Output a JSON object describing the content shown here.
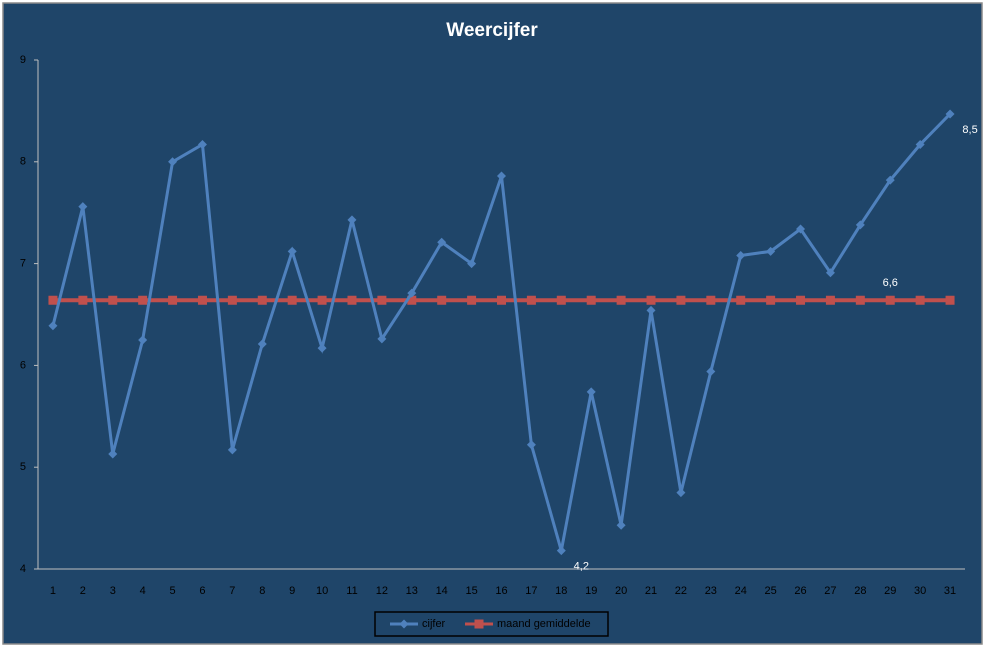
{
  "chart_data": {
    "type": "line",
    "title": "Weercijfer",
    "categories": [
      "1",
      "2",
      "3",
      "4",
      "5",
      "6",
      "7",
      "8",
      "9",
      "10",
      "11",
      "12",
      "13",
      "14",
      "15",
      "16",
      "17",
      "18",
      "19",
      "20",
      "21",
      "22",
      "23",
      "24",
      "25",
      "26",
      "27",
      "28",
      "29",
      "30",
      "31"
    ],
    "series": [
      {
        "name": "cijfer",
        "color": "#4f81bd",
        "marker": "diamond",
        "values": [
          6.39,
          7.56,
          5.13,
          6.25,
          8.0,
          8.17,
          5.17,
          6.21,
          7.12,
          6.17,
          7.43,
          6.26,
          6.71,
          7.21,
          7.0,
          7.86,
          5.22,
          4.18,
          5.74,
          4.43,
          6.54,
          4.75,
          5.94,
          7.08,
          7.12,
          7.34,
          6.91,
          7.38,
          7.82,
          8.17,
          8.47
        ],
        "value_labels": [
          null,
          null,
          null,
          null,
          null,
          null,
          null,
          null,
          null,
          null,
          null,
          null,
          null,
          null,
          null,
          null,
          null,
          "4,2",
          null,
          null,
          null,
          null,
          null,
          null,
          null,
          null,
          null,
          null,
          null,
          null,
          "8,5"
        ]
      },
      {
        "name": "maand gemiddelde",
        "color": "#c0504d",
        "marker": "square",
        "values": [
          6.64,
          6.64,
          6.64,
          6.64,
          6.64,
          6.64,
          6.64,
          6.64,
          6.64,
          6.64,
          6.64,
          6.64,
          6.64,
          6.64,
          6.64,
          6.64,
          6.64,
          6.64,
          6.64,
          6.64,
          6.64,
          6.64,
          6.64,
          6.64,
          6.64,
          6.64,
          6.64,
          6.64,
          6.64,
          6.64,
          6.64
        ],
        "value_labels": [
          null,
          null,
          null,
          null,
          null,
          null,
          null,
          null,
          null,
          null,
          null,
          null,
          null,
          null,
          null,
          null,
          null,
          null,
          null,
          null,
          null,
          null,
          null,
          null,
          null,
          null,
          null,
          null,
          "6,6",
          null,
          null
        ]
      }
    ],
    "ylim": [
      4,
      9
    ],
    "yticks": [
      4,
      5,
      6,
      7,
      8,
      9
    ],
    "grid": false,
    "legend": "bottom"
  }
}
